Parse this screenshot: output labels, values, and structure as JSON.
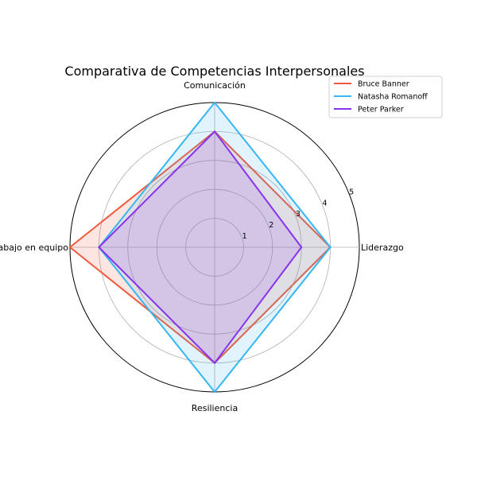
{
  "chart_data": {
    "type": "radar",
    "title": "Comparativa de Competencias Interpersonales",
    "categories": [
      "Liderazgo",
      "Comunicación",
      "Trabajo en equipo",
      "Resiliencia"
    ],
    "rlim": [
      0,
      5
    ],
    "rticks": [
      1,
      2,
      3,
      4,
      5
    ],
    "grid": true,
    "legend_position": "top-right",
    "series": [
      {
        "name": "Bruce Banner",
        "color": "#f05a3c",
        "values": [
          4,
          4,
          5,
          4
        ]
      },
      {
        "name": "Natasha Romanoff",
        "color": "#38b6f0",
        "values": [
          4,
          5,
          4,
          5
        ]
      },
      {
        "name": "Peter Parker",
        "color": "#8a33ee",
        "values": [
          3,
          4,
          4,
          4
        ]
      }
    ]
  }
}
